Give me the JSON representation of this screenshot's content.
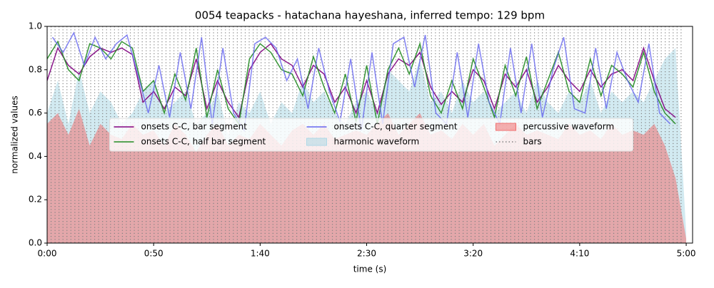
{
  "chart_data": {
    "type": "line",
    "title": "0054 teapacks - hatachana hayeshana, inferred tempo: 129 bpm",
    "x_label": "time (s)",
    "y_label": "normalized values",
    "xlim": [
      0,
      303
    ],
    "ylim": [
      0,
      1
    ],
    "xticks": [
      {
        "value": 0,
        "label": "0:00"
      },
      {
        "value": 50,
        "label": "0:50"
      },
      {
        "value": 100,
        "label": "1:40"
      },
      {
        "value": 150,
        "label": "2:30"
      },
      {
        "value": 200,
        "label": "3:20"
      },
      {
        "value": 250,
        "label": "4:10"
      },
      {
        "value": 300,
        "label": "5:00"
      }
    ],
    "yticks": [
      {
        "value": 0,
        "label": "0.0"
      },
      {
        "value": 0.2,
        "label": "0.2"
      },
      {
        "value": 0.4,
        "label": "0.4"
      },
      {
        "value": 0.6,
        "label": "0.6"
      },
      {
        "value": 0.8,
        "label": "0.8"
      },
      {
        "value": 1,
        "label": "1.0"
      }
    ],
    "legend": "upper center",
    "series": [
      {
        "name": "onsets C-C, bar segment",
        "style": "line",
        "color": "#800080",
        "x": [
          0,
          5,
          10,
          15,
          20,
          25,
          30,
          35,
          40,
          45,
          50,
          55,
          60,
          65,
          70,
          75,
          80,
          85,
          90,
          95,
          100,
          105,
          110,
          115,
          120,
          125,
          130,
          135,
          140,
          145,
          150,
          155,
          160,
          165,
          170,
          175,
          180,
          185,
          190,
          195,
          200,
          205,
          210,
          215,
          220,
          225,
          230,
          235,
          240,
          245,
          250,
          255,
          260,
          265,
          270,
          275,
          280,
          285,
          290,
          295
        ],
        "values": [
          0.75,
          0.9,
          0.82,
          0.78,
          0.86,
          0.9,
          0.88,
          0.9,
          0.87,
          0.65,
          0.7,
          0.62,
          0.72,
          0.68,
          0.85,
          0.62,
          0.75,
          0.65,
          0.58,
          0.8,
          0.88,
          0.92,
          0.85,
          0.82,
          0.72,
          0.82,
          0.78,
          0.65,
          0.72,
          0.6,
          0.75,
          0.6,
          0.78,
          0.85,
          0.82,
          0.88,
          0.72,
          0.64,
          0.7,
          0.65,
          0.8,
          0.75,
          0.62,
          0.78,
          0.72,
          0.8,
          0.65,
          0.72,
          0.82,
          0.75,
          0.7,
          0.8,
          0.72,
          0.78,
          0.8,
          0.75,
          0.9,
          0.75,
          0.62,
          0.58
        ]
      },
      {
        "name": "onsets C-C, half bar segment",
        "style": "line",
        "color": "#228b22",
        "x": [
          0,
          5,
          10,
          15,
          20,
          25,
          30,
          35,
          40,
          45,
          50,
          55,
          60,
          65,
          70,
          75,
          80,
          85,
          90,
          95,
          100,
          105,
          110,
          115,
          120,
          125,
          130,
          135,
          140,
          145,
          150,
          155,
          160,
          165,
          170,
          175,
          180,
          185,
          190,
          195,
          200,
          205,
          210,
          215,
          220,
          225,
          230,
          235,
          240,
          245,
          250,
          255,
          260,
          265,
          270,
          275,
          280,
          285,
          290,
          295
        ],
        "values": [
          0.85,
          0.93,
          0.8,
          0.75,
          0.92,
          0.9,
          0.85,
          0.93,
          0.9,
          0.7,
          0.75,
          0.6,
          0.78,
          0.66,
          0.9,
          0.58,
          0.8,
          0.62,
          0.55,
          0.85,
          0.92,
          0.88,
          0.8,
          0.78,
          0.68,
          0.86,
          0.72,
          0.6,
          0.78,
          0.56,
          0.82,
          0.55,
          0.8,
          0.9,
          0.78,
          0.92,
          0.68,
          0.6,
          0.75,
          0.62,
          0.85,
          0.72,
          0.58,
          0.82,
          0.68,
          0.86,
          0.62,
          0.75,
          0.88,
          0.7,
          0.65,
          0.85,
          0.68,
          0.82,
          0.78,
          0.72,
          0.88,
          0.7,
          0.6,
          0.55
        ]
      },
      {
        "name": "onsets C-C, quarter segment",
        "style": "line",
        "color": "#6464f0",
        "x": [
          2.5,
          7.5,
          12.5,
          17.5,
          22.5,
          27.5,
          32.5,
          37.5,
          42.5,
          47.5,
          52.5,
          57.5,
          62.5,
          67.5,
          72.5,
          77.5,
          82.5,
          87.5,
          92.5,
          97.5,
          102.5,
          107.5,
          112.5,
          117.5,
          122.5,
          127.5,
          132.5,
          137.5,
          142.5,
          147.5,
          152.5,
          157.5,
          162.5,
          167.5,
          172.5,
          177.5,
          182.5,
          187.5,
          192.5,
          197.5,
          202.5,
          207.5,
          212.5,
          217.5,
          222.5,
          227.5,
          232.5,
          237.5,
          242.5,
          247.5,
          252.5,
          257.5,
          262.5,
          267.5,
          272.5,
          277.5,
          282.5,
          287.5,
          292.5
        ],
        "values": [
          0.95,
          0.88,
          0.97,
          0.82,
          0.95,
          0.85,
          0.92,
          0.96,
          0.78,
          0.6,
          0.82,
          0.58,
          0.88,
          0.62,
          0.95,
          0.55,
          0.9,
          0.6,
          0.52,
          0.92,
          0.95,
          0.9,
          0.75,
          0.85,
          0.62,
          0.9,
          0.7,
          0.56,
          0.85,
          0.52,
          0.88,
          0.55,
          0.92,
          0.95,
          0.72,
          0.96,
          0.6,
          0.55,
          0.88,
          0.58,
          0.92,
          0.65,
          0.55,
          0.9,
          0.6,
          0.92,
          0.58,
          0.8,
          0.95,
          0.62,
          0.6,
          0.9,
          0.62,
          0.88,
          0.75,
          0.65,
          0.92,
          0.6,
          0.55
        ]
      },
      {
        "name": "harmonic waveform",
        "style": "area",
        "color": "#add8e6",
        "x": [
          0,
          5,
          10,
          15,
          20,
          25,
          30,
          35,
          40,
          45,
          50,
          55,
          60,
          65,
          70,
          75,
          80,
          85,
          90,
          95,
          100,
          105,
          110,
          115,
          120,
          125,
          130,
          135,
          140,
          145,
          150,
          155,
          160,
          165,
          170,
          175,
          180,
          185,
          190,
          195,
          200,
          205,
          210,
          215,
          220,
          225,
          230,
          235,
          240,
          245,
          250,
          255,
          260,
          265,
          270,
          275,
          280,
          285,
          290,
          295,
          300
        ],
        "values": [
          0.6,
          0.75,
          0.55,
          0.8,
          0.6,
          0.7,
          0.65,
          0.55,
          0.6,
          0.7,
          0.75,
          0.6,
          0.65,
          0.7,
          0.55,
          0.6,
          0.7,
          0.5,
          0.65,
          0.6,
          0.7,
          0.55,
          0.65,
          0.6,
          0.75,
          0.65,
          0.7,
          0.6,
          0.55,
          0.65,
          0.7,
          0.6,
          0.8,
          0.75,
          0.7,
          0.85,
          0.65,
          0.7,
          0.6,
          0.75,
          0.65,
          0.7,
          0.6,
          0.65,
          0.7,
          0.6,
          0.75,
          0.65,
          0.6,
          0.7,
          0.65,
          0.75,
          0.6,
          0.7,
          0.65,
          0.7,
          0.65,
          0.75,
          0.85,
          0.9,
          0.05
        ]
      },
      {
        "name": "percussive waveform",
        "style": "area",
        "color": "#f07070",
        "x": [
          0,
          5,
          10,
          15,
          20,
          25,
          30,
          35,
          40,
          45,
          50,
          55,
          60,
          65,
          70,
          75,
          80,
          85,
          90,
          95,
          100,
          105,
          110,
          115,
          120,
          125,
          130,
          135,
          140,
          145,
          150,
          155,
          160,
          165,
          170,
          175,
          180,
          185,
          190,
          195,
          200,
          205,
          210,
          215,
          220,
          225,
          230,
          235,
          240,
          245,
          250,
          255,
          260,
          265,
          270,
          275,
          280,
          285,
          290,
          295,
          300
        ],
        "values": [
          0.55,
          0.6,
          0.5,
          0.62,
          0.45,
          0.55,
          0.5,
          0.48,
          0.55,
          0.5,
          0.52,
          0.45,
          0.55,
          0.5,
          0.42,
          0.5,
          0.55,
          0.45,
          0.5,
          0.48,
          0.55,
          0.5,
          0.45,
          0.52,
          0.55,
          0.5,
          0.55,
          0.48,
          0.5,
          0.52,
          0.5,
          0.55,
          0.6,
          0.5,
          0.55,
          0.6,
          0.5,
          0.52,
          0.48,
          0.55,
          0.5,
          0.55,
          0.45,
          0.5,
          0.55,
          0.5,
          0.52,
          0.5,
          0.48,
          0.55,
          0.5,
          0.52,
          0.48,
          0.55,
          0.5,
          0.52,
          0.5,
          0.55,
          0.45,
          0.3,
          0.02
        ]
      },
      {
        "name": "bars",
        "style": "vlines",
        "color": "#808080",
        "x": [
          0,
          1.86,
          3.72,
          5.58,
          7.44,
          9.3,
          11.16,
          13.02,
          14.88,
          16.74,
          18.6,
          20.46,
          22.32,
          24.18,
          26.04,
          27.9,
          29.76,
          31.62,
          33.48,
          35.34,
          37.2,
          39.06,
          40.92,
          42.78,
          44.64,
          46.5,
          48.36,
          50.22,
          52.08,
          53.94,
          55.8,
          57.66,
          59.52,
          61.38,
          63.24,
          65.1,
          66.96,
          68.82,
          70.68,
          72.54,
          74.4,
          76.26,
          78.12,
          79.98,
          81.84,
          83.7,
          85.56,
          87.42,
          89.28,
          91.14,
          93,
          94.86,
          96.72,
          98.58,
          100.44,
          102.3,
          104.16,
          106.02,
          107.88,
          109.74,
          111.6,
          113.46,
          115.32,
          117.18,
          119.04,
          120.9,
          122.76,
          124.62,
          126.48,
          128.34,
          130.2,
          132.06,
          133.92,
          135.78,
          137.64,
          139.5,
          141.36,
          143.22,
          145.08,
          146.94,
          148.8,
          150.66,
          152.52,
          154.38,
          156.24,
          158.1,
          159.96,
          161.82,
          163.68,
          165.54,
          167.4,
          169.26,
          171.12,
          172.98,
          174.84,
          176.7,
          178.56,
          180.42,
          182.28,
          184.14,
          186,
          187.86,
          189.72,
          191.58,
          193.44,
          195.3,
          197.16,
          199.02,
          200.88,
          202.74,
          204.6,
          206.46,
          208.32,
          210.18,
          212.04,
          213.9,
          215.76,
          217.62,
          219.48,
          221.34,
          223.2,
          225.06,
          226.92,
          228.78,
          230.64,
          232.5,
          234.36,
          236.22,
          238.08,
          239.94,
          241.8,
          243.66,
          245.52,
          247.38,
          249.24,
          251.1,
          252.96,
          254.82,
          256.68,
          258.54,
          260.4,
          262.26,
          264.12,
          265.98,
          267.84,
          269.7,
          271.56,
          273.42,
          275.28,
          277.14,
          279,
          280.86,
          282.72,
          284.58,
          286.44,
          288.3,
          290.16,
          292.02,
          293.88,
          295.74,
          297.6
        ]
      }
    ]
  }
}
